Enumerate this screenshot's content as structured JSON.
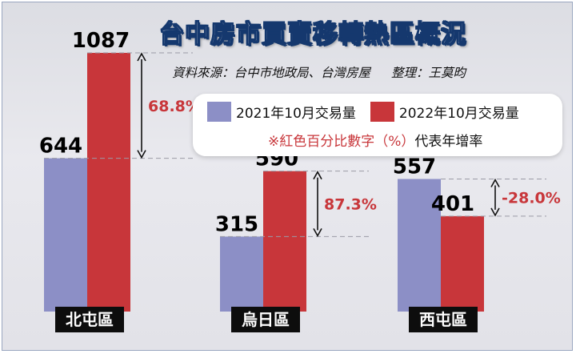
{
  "title": "台中房市買賣移轉熱區概況",
  "source": "資料來源：台中市地政局、台灣房屋",
  "editor": "整理：王莫昀",
  "legend": {
    "series_2021": "2021年10月交易量",
    "series_2022": "2022年10月交易量",
    "note_mark": "※紅色百分比數字（%）",
    "note_rest": "代表年增率"
  },
  "colors": {
    "series_2021": "#8c8fc6",
    "series_2022": "#c8363a",
    "pct": "#c8363a"
  },
  "chart_data": {
    "type": "bar",
    "categories": [
      "北屯區",
      "烏日區",
      "西屯區"
    ],
    "series": [
      {
        "name": "2021年10月交易量",
        "values": [
          644,
          315,
          557
        ]
      },
      {
        "name": "2022年10月交易量",
        "values": [
          1087,
          590,
          401
        ]
      }
    ],
    "value_labels": [
      [
        "644",
        "315",
        "557"
      ],
      [
        "1087",
        "590",
        "401"
      ]
    ],
    "growth_labels": [
      "68.8%",
      "87.3%",
      "-28.0%"
    ],
    "ylim": [
      0,
      1087
    ]
  }
}
